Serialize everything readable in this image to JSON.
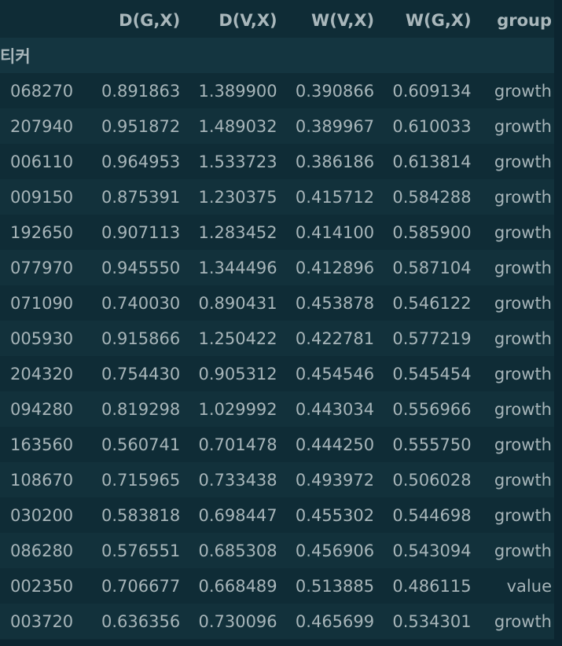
{
  "table": {
    "columns": [
      "D(G,X)",
      "D(V,X)",
      "W(V,X)",
      "W(G,X)",
      "group"
    ],
    "index_name": "티커",
    "rows": [
      {
        "ticker": "068270",
        "dgx": "0.891863",
        "dvx": "1.389900",
        "wvx": "0.390866",
        "wgx": "0.609134",
        "group": "growth"
      },
      {
        "ticker": "207940",
        "dgx": "0.951872",
        "dvx": "1.489032",
        "wvx": "0.389967",
        "wgx": "0.610033",
        "group": "growth"
      },
      {
        "ticker": "006110",
        "dgx": "0.964953",
        "dvx": "1.533723",
        "wvx": "0.386186",
        "wgx": "0.613814",
        "group": "growth"
      },
      {
        "ticker": "009150",
        "dgx": "0.875391",
        "dvx": "1.230375",
        "wvx": "0.415712",
        "wgx": "0.584288",
        "group": "growth"
      },
      {
        "ticker": "192650",
        "dgx": "0.907113",
        "dvx": "1.283452",
        "wvx": "0.414100",
        "wgx": "0.585900",
        "group": "growth"
      },
      {
        "ticker": "077970",
        "dgx": "0.945550",
        "dvx": "1.344496",
        "wvx": "0.412896",
        "wgx": "0.587104",
        "group": "growth"
      },
      {
        "ticker": "071090",
        "dgx": "0.740030",
        "dvx": "0.890431",
        "wvx": "0.453878",
        "wgx": "0.546122",
        "group": "growth"
      },
      {
        "ticker": "005930",
        "dgx": "0.915866",
        "dvx": "1.250422",
        "wvx": "0.422781",
        "wgx": "0.577219",
        "group": "growth"
      },
      {
        "ticker": "204320",
        "dgx": "0.754430",
        "dvx": "0.905312",
        "wvx": "0.454546",
        "wgx": "0.545454",
        "group": "growth"
      },
      {
        "ticker": "094280",
        "dgx": "0.819298",
        "dvx": "1.029992",
        "wvx": "0.443034",
        "wgx": "0.556966",
        "group": "growth"
      },
      {
        "ticker": "163560",
        "dgx": "0.560741",
        "dvx": "0.701478",
        "wvx": "0.444250",
        "wgx": "0.555750",
        "group": "growth"
      },
      {
        "ticker": "108670",
        "dgx": "0.715965",
        "dvx": "0.733438",
        "wvx": "0.493972",
        "wgx": "0.506028",
        "group": "growth"
      },
      {
        "ticker": "030200",
        "dgx": "0.583818",
        "dvx": "0.698447",
        "wvx": "0.455302",
        "wgx": "0.544698",
        "group": "growth"
      },
      {
        "ticker": "086280",
        "dgx": "0.576551",
        "dvx": "0.685308",
        "wvx": "0.456906",
        "wgx": "0.543094",
        "group": "growth"
      },
      {
        "ticker": "002350",
        "dgx": "0.706677",
        "dvx": "0.668489",
        "wvx": "0.513885",
        "wgx": "0.486115",
        "group": "value"
      },
      {
        "ticker": "003720",
        "dgx": "0.636356",
        "dvx": "0.730096",
        "wvx": "0.465699",
        "wgx": "0.534301",
        "group": "growth"
      }
    ]
  },
  "colors": {
    "background": "#0f2c36",
    "row_alt": "#12313b",
    "header_band": "#143540",
    "text": "#a7b5b9"
  }
}
